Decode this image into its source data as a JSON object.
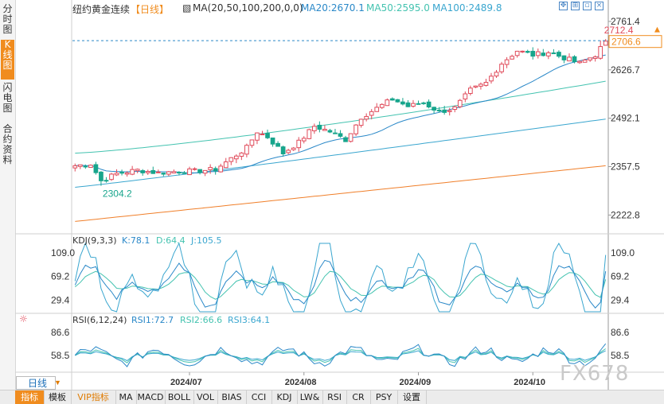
{
  "sidebar": {
    "tabs": [
      {
        "label": "分时图",
        "active": false
      },
      {
        "label": "K线图",
        "active": true
      },
      {
        "label": "闪电图",
        "active": false
      },
      {
        "label": "合约资料",
        "active": false
      }
    ]
  },
  "header": {
    "title": "纽约黄金连续",
    "period": "【日线】",
    "ma_label": "MA(20,50,100,200,0,0)",
    "ma20": "MA20:2670.1",
    "ma50": "MA50:2595.0",
    "ma100": "MA100:2489.8"
  },
  "window_icons": [
    "move-icon",
    "fit-icon",
    "restore-icon",
    "close-icon"
  ],
  "colors": {
    "up": "#e04a5a",
    "down": "#17a58c",
    "ma20": "#2a88c8",
    "ma50": "#44c3b0",
    "ma100": "#3aa6cf",
    "ma200": "#f07f2a",
    "axis": "#333333",
    "accent": "#f08c1e"
  },
  "price_panel": {
    "ticks": [
      "2761.4",
      "2626.7",
      "2492.1",
      "2357.5",
      "2222.8"
    ],
    "high_label": "2712.4",
    "low_label": "2304.2",
    "current_price": "2706.6"
  },
  "kdj_panel": {
    "label": "KDJ(9,3,3)",
    "k": "K:78.1",
    "d": "D:64.4",
    "j": "J:105.5",
    "ticks": [
      "109.0",
      "69.2",
      "29.4"
    ]
  },
  "rsi_panel": {
    "label": "RSI(6,12,24)",
    "rsi1": "RSI1:72.7",
    "rsi2": "RSI2:66.6",
    "rsi3": "RSI3:64.1",
    "ticks": [
      "86.6",
      "58.5"
    ]
  },
  "x_axis": {
    "labels": [
      "2024/07",
      "2024/08",
      "2024/09",
      "2024/10"
    ]
  },
  "period_button": "日线",
  "toolbar": [
    "指标",
    "模板",
    "VIP指标",
    "MA",
    "MACD",
    "BOLL",
    "VOL",
    "BIAS",
    "CCI",
    "KDJ",
    "LW&",
    "RSI",
    "CR",
    "PSY",
    "设置"
  ],
  "watermark": "FX678",
  "chart_data": {
    "type": "candlestick",
    "title": "纽约黄金连续",
    "ylim": [
      2175,
      2790
    ],
    "anchors_close": [
      [
        0,
        2360
      ],
      [
        3,
        2365
      ],
      [
        5,
        2318
      ],
      [
        8,
        2338
      ],
      [
        12,
        2348
      ],
      [
        16,
        2340
      ],
      [
        20,
        2345
      ],
      [
        23,
        2345
      ],
      [
        27,
        2350
      ],
      [
        30,
        2380
      ],
      [
        33,
        2410
      ],
      [
        35,
        2455
      ],
      [
        37,
        2440
      ],
      [
        40,
        2395
      ],
      [
        43,
        2425
      ],
      [
        46,
        2470
      ],
      [
        49,
        2455
      ],
      [
        52,
        2432
      ],
      [
        55,
        2495
      ],
      [
        58,
        2520
      ],
      [
        61,
        2545
      ],
      [
        64,
        2525
      ],
      [
        67,
        2535
      ],
      [
        70,
        2510
      ],
      [
        73,
        2520
      ],
      [
        76,
        2570
      ],
      [
        79,
        2590
      ],
      [
        82,
        2645
      ],
      [
        85,
        2680
      ],
      [
        88,
        2668
      ],
      [
        91,
        2676
      ],
      [
        94,
        2660
      ],
      [
        97,
        2645
      ],
      [
        100,
        2668
      ],
      [
        102,
        2706.6
      ]
    ],
    "high": 2712.4,
    "low": 2304.2,
    "last": 2706.6,
    "ma": {
      "ma20": 2670.1,
      "ma50": 2595.0,
      "ma100": 2489.8
    },
    "kdj": {
      "k": 78.1,
      "d": 64.4,
      "j": 105.5,
      "ylim": [
        10,
        125
      ]
    },
    "rsi": {
      "rsi1": 72.7,
      "rsi2": 66.6,
      "rsi3": 64.1,
      "ylim": [
        40,
        98
      ]
    },
    "x_ticks": [
      "2024/07",
      "2024/08",
      "2024/09",
      "2024/10"
    ]
  }
}
